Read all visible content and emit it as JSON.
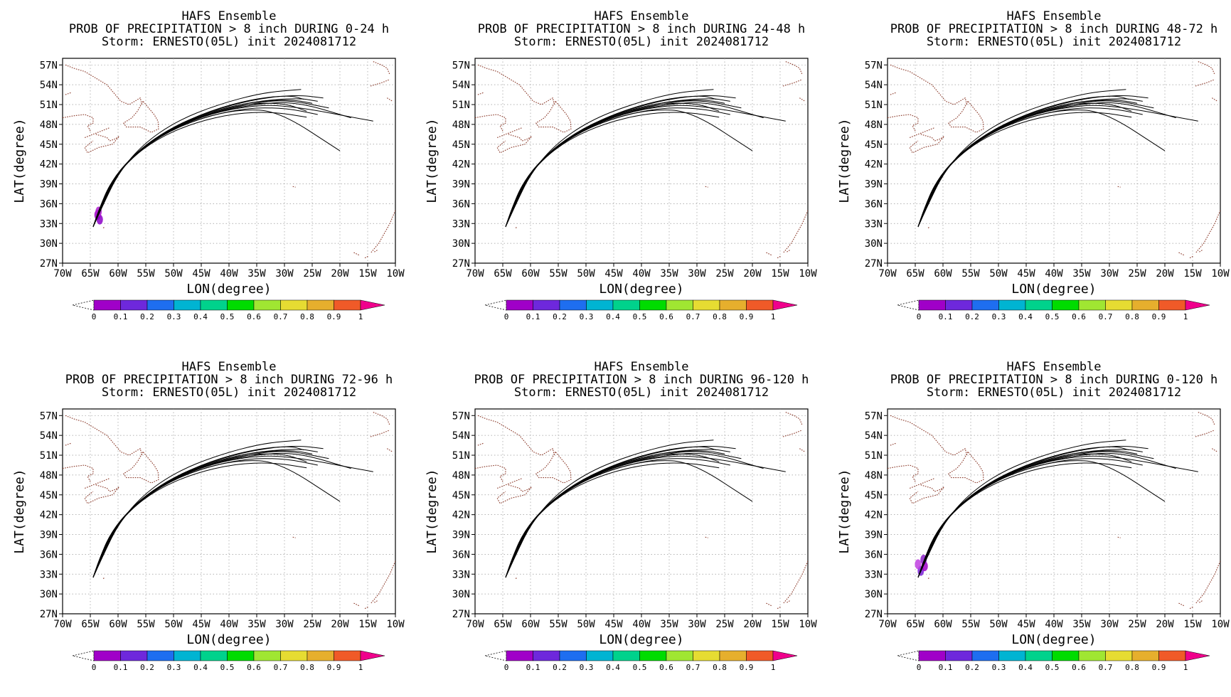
{
  "figure": {
    "ensemble_title": "HAFS Ensemble",
    "storm_line": "Storm: ERNESTO(05L) init 2024081712",
    "x_axis_label": "LON(degree)",
    "y_axis_label": "LAT(degree)",
    "colorbar": {
      "tick_labels": [
        "0",
        "0.1",
        "0.2",
        "0.3",
        "0.4",
        "0.5",
        "0.6",
        "0.7",
        "0.8",
        "0.9",
        "1"
      ],
      "colors": [
        "#a000c8",
        "#6e28dc",
        "#1e6ef0",
        "#00b4d2",
        "#00d28c",
        "#00dc00",
        "#a0e632",
        "#e6dc32",
        "#e6af2d",
        "#f05a28",
        "#f0008c"
      ]
    }
  },
  "panels": [
    {
      "title_line2": "PROB OF PRECIPITATION > 8 inch DURING  0-24 h"
    },
    {
      "title_line2": "PROB OF PRECIPITATION > 8 inch DURING 24-48 h"
    },
    {
      "title_line2": "PROB OF PRECIPITATION > 8 inch DURING 48-72 h"
    },
    {
      "title_line2": "PROB OF PRECIPITATION > 8 inch DURING 72-96 h"
    },
    {
      "title_line2": "PROB OF PRECIPITATION > 8 inch DURING 96-120 h"
    },
    {
      "title_line2": "PROB OF PRECIPITATION > 8 inch DURING 0-120 h"
    }
  ],
  "chart_data": {
    "type": "map",
    "xlabel": "LON(degree)",
    "ylabel": "LAT(degree)",
    "xlim": [
      -70,
      -10
    ],
    "ylim": [
      27,
      58
    ],
    "x_tick_labels": [
      "70W",
      "65W",
      "60W",
      "55W",
      "50W",
      "45W",
      "40W",
      "35W",
      "30W",
      "25W",
      "20W",
      "15W",
      "10W"
    ],
    "y_tick_labels": [
      "27N",
      "30N",
      "33N",
      "36N",
      "39N",
      "42N",
      "45N",
      "48N",
      "51N",
      "54N",
      "57N"
    ],
    "tracks_lon_lat": [
      [
        [
          -64.5,
          32.5
        ],
        [
          -63.2,
          35.5
        ],
        [
          -61,
          39.5
        ],
        [
          -57.5,
          43
        ],
        [
          -52,
          46.5
        ],
        [
          -45,
          49
        ],
        [
          -37,
          50.5
        ],
        [
          -30,
          50.5
        ],
        [
          -24,
          49.5
        ]
      ],
      [
        [
          -64.5,
          32.5
        ],
        [
          -62.8,
          35.8
        ],
        [
          -60.5,
          40
        ],
        [
          -57,
          43.5
        ],
        [
          -51,
          47
        ],
        [
          -44,
          49.5
        ],
        [
          -36,
          51
        ],
        [
          -28,
          51.5
        ],
        [
          -18,
          49
        ]
      ],
      [
        [
          -64.5,
          32.5
        ],
        [
          -63,
          35.5
        ],
        [
          -60.8,
          39.8
        ],
        [
          -57.2,
          43.2
        ],
        [
          -51.5,
          46.8
        ],
        [
          -44.5,
          49.4
        ],
        [
          -37,
          51
        ],
        [
          -30,
          51.8
        ],
        [
          -22,
          50.5
        ]
      ],
      [
        [
          -64.5,
          32.5
        ],
        [
          -63.3,
          35.4
        ],
        [
          -61.2,
          39.4
        ],
        [
          -57.8,
          42.9
        ],
        [
          -52.3,
          46.3
        ],
        [
          -45.5,
          48.9
        ],
        [
          -38,
          50.3
        ],
        [
          -31,
          50
        ],
        [
          -20,
          44
        ]
      ],
      [
        [
          -64.5,
          32.5
        ],
        [
          -62.6,
          36
        ],
        [
          -60.2,
          40.3
        ],
        [
          -56.5,
          44
        ],
        [
          -50.5,
          47.5
        ],
        [
          -43.5,
          50
        ],
        [
          -35.5,
          51.8
        ],
        [
          -28,
          52.5
        ],
        [
          -23,
          52
        ]
      ],
      [
        [
          -64.5,
          32.5
        ],
        [
          -62.9,
          35.7
        ],
        [
          -60.6,
          40
        ],
        [
          -57,
          43.6
        ],
        [
          -51.2,
          47
        ],
        [
          -44,
          49.8
        ],
        [
          -36,
          51.4
        ],
        [
          -29,
          51.8
        ],
        [
          -25,
          51.2
        ]
      ],
      [
        [
          -64.5,
          32.5
        ],
        [
          -63.1,
          35.5
        ],
        [
          -60.9,
          39.7
        ],
        [
          -57.4,
          43.1
        ],
        [
          -51.8,
          46.6
        ],
        [
          -45,
          49.2
        ],
        [
          -37.5,
          50.7
        ],
        [
          -30,
          51
        ],
        [
          -14,
          48.5
        ]
      ],
      [
        [
          -64.5,
          32.5
        ],
        [
          -62.5,
          36.2
        ],
        [
          -59.8,
          40.8
        ],
        [
          -55.5,
          45
        ],
        [
          -49.5,
          48.5
        ],
        [
          -42,
          51
        ],
        [
          -34,
          52.8
        ],
        [
          -27,
          53.3
        ]
      ],
      [
        [
          -64.5,
          32.5
        ],
        [
          -63.4,
          35.2
        ],
        [
          -61.5,
          39
        ],
        [
          -58.2,
          42.5
        ],
        [
          -53,
          45.8
        ],
        [
          -46.5,
          48.2
        ],
        [
          -39,
          49.7
        ],
        [
          -32,
          49.9
        ],
        [
          -26,
          49.1
        ]
      ],
      [
        [
          -64.5,
          32.5
        ],
        [
          -62.7,
          35.9
        ],
        [
          -60.4,
          40.1
        ],
        [
          -56.8,
          43.8
        ],
        [
          -50.8,
          47.3
        ],
        [
          -43.5,
          49.9
        ],
        [
          -35.5,
          51.5
        ],
        [
          -27.5,
          52
        ],
        [
          -24,
          51.5
        ]
      ],
      [
        [
          -64.5,
          32.5
        ],
        [
          -63,
          35.6
        ],
        [
          -60.7,
          39.9
        ],
        [
          -57.1,
          43.4
        ],
        [
          -51.4,
          46.9
        ],
        [
          -44.2,
          49.6
        ],
        [
          -36.5,
          51.2
        ],
        [
          -30,
          51.2
        ],
        [
          -26,
          50
        ]
      ],
      [
        [
          -64.5,
          32.5
        ],
        [
          -62.7,
          36
        ],
        [
          -60.3,
          40.2
        ],
        [
          -56.6,
          43.9
        ],
        [
          -50.6,
          47.4
        ],
        [
          -43.4,
          50.1
        ],
        [
          -35.5,
          51.9
        ],
        [
          -29,
          52.4
        ],
        [
          -26.5,
          51.8
        ]
      ]
    ],
    "land_outline_segments_lon_lat": [
      [
        [
          -69.5,
          57
        ],
        [
          -68,
          56.5
        ],
        [
          -66,
          56
        ],
        [
          -64,
          55
        ],
        [
          -62,
          54
        ],
        [
          -60.5,
          52.5
        ],
        [
          -59.5,
          51.5
        ],
        [
          -58,
          51
        ],
        [
          -57,
          51.5
        ],
        [
          -56,
          52
        ],
        [
          -55.7,
          51
        ]
      ],
      [
        [
          -55.5,
          51.5
        ],
        [
          -56.5,
          50
        ],
        [
          -57.5,
          49
        ],
        [
          -59,
          48.2
        ],
        [
          -58.5,
          47.6
        ],
        [
          -56,
          47.6
        ],
        [
          -54,
          46.8
        ],
        [
          -52.7,
          47.3
        ],
        [
          -52.8,
          48.5
        ],
        [
          -53.5,
          49.5
        ],
        [
          -55.5,
          51.5
        ]
      ],
      [
        [
          -70,
          49
        ],
        [
          -68,
          49.3
        ],
        [
          -66,
          49.5
        ],
        [
          -64.5,
          49
        ],
        [
          -64.5,
          48.2
        ],
        [
          -65.5,
          47.8
        ],
        [
          -65,
          47
        ]
      ],
      [
        [
          -64,
          46.5
        ],
        [
          -62,
          46
        ],
        [
          -61.5,
          45.5
        ],
        [
          -60.5,
          45.8
        ],
        [
          -59.8,
          46.2
        ],
        [
          -61,
          45
        ],
        [
          -63.5,
          44.5
        ],
        [
          -65.5,
          43.7
        ],
        [
          -66,
          44.5
        ],
        [
          -64.5,
          45.5
        ]
      ],
      [
        [
          -66,
          46
        ],
        [
          -64.5,
          46.5
        ],
        [
          -63,
          47
        ],
        [
          -61.5,
          47.5
        ]
      ],
      [
        [
          -69.5,
          52.5
        ],
        [
          -68.5,
          52.8
        ]
      ],
      [
        [
          -14,
          57.5
        ],
        [
          -12.5,
          57
        ],
        [
          -11.5,
          56.5
        ],
        [
          -11,
          55.5
        ]
      ],
      [
        [
          -14.5,
          53.8
        ],
        [
          -12.5,
          54.3
        ],
        [
          -11,
          54.8
        ]
      ],
      [
        [
          -11.5,
          52
        ],
        [
          -10.5,
          51.5
        ]
      ],
      [
        [
          -10,
          35
        ],
        [
          -11,
          33
        ],
        [
          -12,
          31.5
        ],
        [
          -13,
          30
        ],
        [
          -14.5,
          28.5
        ]
      ],
      [
        [
          -17.5,
          28.6
        ],
        [
          -16.5,
          28.2
        ]
      ],
      [
        [
          -15.5,
          27.8
        ],
        [
          -14.8,
          28.1
        ]
      ],
      [
        [
          -13.8,
          28.7
        ],
        [
          -13.2,
          29
        ]
      ],
      [
        [
          -28.5,
          38.6
        ],
        [
          -28,
          38.5
        ]
      ],
      [
        [
          -62.5,
          32.4
        ],
        [
          -62.8,
          32.3
        ]
      ]
    ],
    "probability_blobs_lon_lat": [
      {
        "panel": 1,
        "center": [
          -63.7,
          34.3
        ],
        "fill": "#a000c8"
      },
      {
        "panel": 1,
        "center": [
          -63.3,
          33.6
        ],
        "fill": "#8c00c8"
      },
      {
        "panel": 1,
        "center": [
          -63.5,
          34.8
        ],
        "fill": "#b020d0"
      },
      {
        "panel": 6,
        "center": [
          -64.0,
          33.5
        ],
        "fill": "#7a20d8"
      },
      {
        "panel": 6,
        "center": [
          -63.3,
          34.2
        ],
        "fill": "#a000c8"
      },
      {
        "panel": 6,
        "center": [
          -63.5,
          35.2
        ],
        "fill": "#8c20c8"
      },
      {
        "panel": 6,
        "center": [
          -64.5,
          34.5
        ],
        "fill": "#c040e0"
      }
    ]
  }
}
